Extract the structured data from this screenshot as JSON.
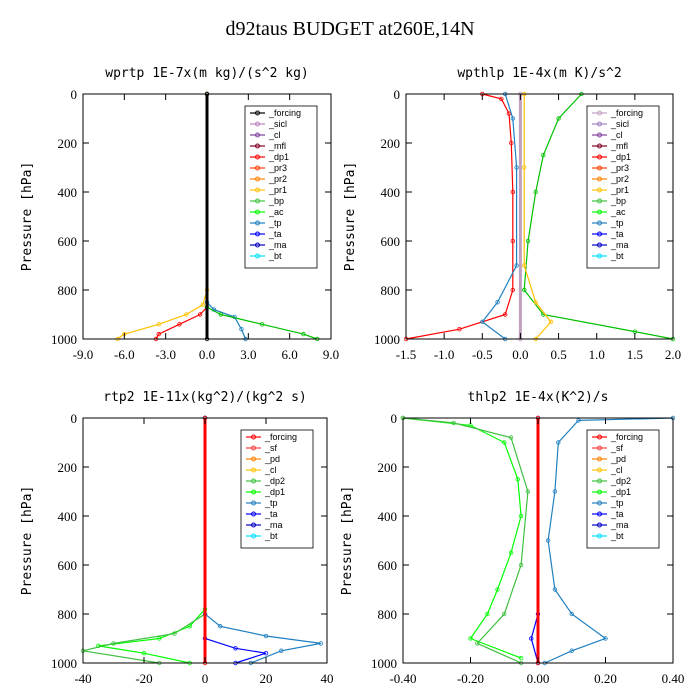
{
  "title": "d92taus  BUDGET at260E,14N",
  "chart_data": [
    {
      "type": "line",
      "title": "wprtp  1E-7x(m kg)/(s^2 kg)",
      "ylabel": "Pressure [hPa]",
      "xlim": [
        -9,
        9
      ],
      "ylim": [
        1000,
        0
      ],
      "xticks": [
        "-9.0",
        "-6.0",
        "-3.0",
        "0.0",
        "3.0",
        "6.0",
        "9.0"
      ],
      "yticks": [
        "0",
        "200",
        "400",
        "600",
        "800",
        "1000"
      ],
      "legend": [
        "_forcing",
        "_sicl",
        "_cl",
        "_mfl",
        "_dp1",
        "_pr3",
        "_pr2",
        "_pr1",
        "_bp",
        "_ac",
        "_tp",
        "_ta",
        "_ma",
        "_bt"
      ],
      "legend_colors": [
        "#000000",
        "#c080c0",
        "#8040a0",
        "#800020",
        "#ff0000",
        "#ff4000",
        "#ff8000",
        "#ffc000",
        "#40c040",
        "#00ff00",
        "#2080c0",
        "#0000ff",
        "#0000c0",
        "#00e0ff"
      ],
      "legend_position": "top-right",
      "series": [
        {
          "name": "_pr1",
          "color": "#ffc000",
          "points": [
            [
              0,
              0
            ],
            [
              0,
              800
            ],
            [
              -0.3,
              860
            ],
            [
              -1.5,
              900
            ],
            [
              -3.5,
              940
            ],
            [
              -6,
              980
            ],
            [
              -6.5,
              1000
            ]
          ]
        },
        {
          "name": "_dp1",
          "color": "#ff0000",
          "points": [
            [
              0,
              0
            ],
            [
              0,
              870
            ],
            [
              -0.5,
              900
            ],
            [
              -2,
              940
            ],
            [
              -3.5,
              980
            ],
            [
              -3.7,
              1000
            ]
          ]
        },
        {
          "name": "_tp",
          "color": "#2080c0",
          "points": [
            [
              0,
              0
            ],
            [
              0,
              850
            ],
            [
              0.5,
              880
            ],
            [
              2,
              910
            ],
            [
              2.5,
              960
            ],
            [
              2.8,
              1000
            ]
          ]
        },
        {
          "name": "_ac",
          "color": "#00c000",
          "points": [
            [
              0,
              0
            ],
            [
              0,
              870
            ],
            [
              1,
              900
            ],
            [
              4,
              940
            ],
            [
              7,
              980
            ],
            [
              8,
              1000
            ]
          ]
        },
        {
          "name": "_forcing",
          "color": "#000000",
          "points": [
            [
              0,
              0
            ],
            [
              0,
              1000
            ]
          ]
        }
      ]
    },
    {
      "type": "line",
      "title": "wpthlp  1E-4x(m K)/s^2",
      "ylabel": "Pressure [hPa]",
      "xlim": [
        -1.5,
        2.0
      ],
      "ylim": [
        1000,
        0
      ],
      "xticks": [
        "-1.5",
        "-1.0",
        "-0.5",
        "0.0",
        "0.5",
        "1.0",
        "1.5",
        "2.0"
      ],
      "yticks": [
        "0",
        "200",
        "400",
        "600",
        "800",
        "1000"
      ],
      "legend": [
        "_forcing",
        "_sicl",
        "_cl",
        "_mfl",
        "_dp1",
        "_pr3",
        "_pr2",
        "_pr1",
        "_bp",
        "_ac",
        "_tp",
        "_ta",
        "_ma",
        "_bt"
      ],
      "legend_colors": [
        "#c0a0c0",
        "#a080c0",
        "#8040a0",
        "#800020",
        "#ff0000",
        "#ff4000",
        "#ff8000",
        "#ffc000",
        "#40c040",
        "#00ff00",
        "#2080c0",
        "#0000ff",
        "#0000c0",
        "#00e0ff"
      ],
      "legend_position": "top-right",
      "series": [
        {
          "name": "_dp1",
          "color": "#ff0000",
          "points": [
            [
              -0.5,
              0
            ],
            [
              -0.25,
              20
            ],
            [
              -0.15,
              80
            ],
            [
              -0.12,
              200
            ],
            [
              -0.1,
              400
            ],
            [
              -0.1,
              600
            ],
            [
              -0.1,
              800
            ],
            [
              -0.2,
              900
            ],
            [
              -0.8,
              960
            ],
            [
              -1.5,
              1000
            ]
          ]
        },
        {
          "name": "_tp",
          "color": "#2080c0",
          "points": [
            [
              -0.2,
              0
            ],
            [
              -0.1,
              100
            ],
            [
              -0.05,
              300
            ],
            [
              -0.05,
              700
            ],
            [
              -0.3,
              850
            ],
            [
              -0.5,
              930
            ],
            [
              -0.2,
              1000
            ]
          ]
        },
        {
          "name": "_ac",
          "color": "#00c000",
          "points": [
            [
              0.8,
              0
            ],
            [
              0.5,
              100
            ],
            [
              0.3,
              250
            ],
            [
              0.2,
              400
            ],
            [
              0.1,
              600
            ],
            [
              0.05,
              800
            ],
            [
              0.3,
              900
            ],
            [
              1.5,
              970
            ],
            [
              2.0,
              1000
            ]
          ]
        },
        {
          "name": "_pr1",
          "color": "#ffc000",
          "points": [
            [
              0.05,
              0
            ],
            [
              0.05,
              300
            ],
            [
              0.05,
              700
            ],
            [
              0.2,
              850
            ],
            [
              0.4,
              930
            ],
            [
              0.2,
              1000
            ]
          ]
        },
        {
          "name": "_forcing",
          "color": "#c0a0c0",
          "points": [
            [
              0,
              0
            ],
            [
              0,
              1000
            ]
          ]
        }
      ]
    },
    {
      "type": "line",
      "title": "rtp2  1E-11x(kg^2)/(kg^2 s)",
      "ylabel": "Pressure [hPa]",
      "xlim": [
        -40,
        40
      ],
      "ylim": [
        1000,
        0
      ],
      "xticks": [
        "-40",
        "-20",
        "0",
        "20",
        "40"
      ],
      "yticks": [
        "0",
        "200",
        "400",
        "600",
        "800",
        "1000"
      ],
      "legend": [
        "_forcing",
        "_sf",
        "_pd",
        "_cl",
        "_dp2",
        "_dp1",
        "_tp",
        "_ta",
        "_ma",
        "_bt"
      ],
      "legend_colors": [
        "#ff0000",
        "#ff4040",
        "#ff8000",
        "#ffc000",
        "#40c040",
        "#00ff00",
        "#2080c0",
        "#0000ff",
        "#0000c0",
        "#00e0ff"
      ],
      "legend_position": "top-right",
      "series": [
        {
          "name": "_dp1",
          "color": "#00ff00",
          "points": [
            [
              0,
              0
            ],
            [
              0,
              780
            ],
            [
              -5,
              850
            ],
            [
              -15,
              900
            ],
            [
              -35,
              930
            ],
            [
              -20,
              960
            ],
            [
              -5,
              1000
            ]
          ]
        },
        {
          "name": "_dp2",
          "color": "#40c040",
          "points": [
            [
              0,
              0
            ],
            [
              0,
              800
            ],
            [
              -10,
              880
            ],
            [
              -30,
              920
            ],
            [
              -40,
              950
            ],
            [
              -15,
              1000
            ]
          ]
        },
        {
          "name": "_tp",
          "color": "#2080c0",
          "points": [
            [
              0,
              0
            ],
            [
              0,
              800
            ],
            [
              5,
              850
            ],
            [
              20,
              890
            ],
            [
              38,
              920
            ],
            [
              25,
              950
            ],
            [
              15,
              1000
            ]
          ]
        },
        {
          "name": "_ta",
          "color": "#0000ff",
          "points": [
            [
              0,
              0
            ],
            [
              0,
              900
            ],
            [
              10,
              940
            ],
            [
              20,
              960
            ],
            [
              10,
              1000
            ]
          ]
        },
        {
          "name": "_forcing",
          "color": "#ff0000",
          "points": [
            [
              0,
              0
            ],
            [
              0,
              1000
            ]
          ]
        }
      ]
    },
    {
      "type": "line",
      "title": "thlp2  1E-4x(K^2)/s",
      "ylabel": "Pressure [hPa]",
      "xlim": [
        -0.4,
        0.4
      ],
      "ylim": [
        1000,
        0
      ],
      "xticks": [
        "-0.40",
        "-0.20",
        "0.00",
        "0.20",
        "0.40"
      ],
      "yticks": [
        "0",
        "200",
        "400",
        "600",
        "800",
        "1000"
      ],
      "legend": [
        "_forcing",
        "_sf",
        "_pd",
        "_cl",
        "_dp2",
        "_dp1",
        "_tp",
        "_ta",
        "_ma",
        "_bt"
      ],
      "legend_colors": [
        "#ff0000",
        "#ff4040",
        "#ff8000",
        "#ffc000",
        "#40c040",
        "#00ff00",
        "#2080c0",
        "#0000ff",
        "#0000c0",
        "#00e0ff"
      ],
      "legend_position": "top-right",
      "series": [
        {
          "name": "_dp1",
          "color": "#00ff00",
          "points": [
            [
              -0.4,
              0
            ],
            [
              -0.2,
              30
            ],
            [
              -0.1,
              100
            ],
            [
              -0.06,
              250
            ],
            [
              -0.05,
              400
            ],
            [
              -0.08,
              550
            ],
            [
              -0.12,
              700
            ],
            [
              -0.15,
              800
            ],
            [
              -0.2,
              900
            ],
            [
              -0.05,
              980
            ]
          ]
        },
        {
          "name": "_dp2",
          "color": "#40c040",
          "points": [
            [
              -0.4,
              0
            ],
            [
              -0.25,
              20
            ],
            [
              -0.08,
              80
            ],
            [
              -0.03,
              300
            ],
            [
              -0.05,
              600
            ],
            [
              -0.1,
              800
            ],
            [
              -0.18,
              920
            ],
            [
              -0.05,
              1000
            ]
          ]
        },
        {
          "name": "_tp",
          "color": "#2080c0",
          "points": [
            [
              0.4,
              0
            ],
            [
              0.12,
              10
            ],
            [
              0.06,
              100
            ],
            [
              0.05,
              300
            ],
            [
              0.03,
              500
            ],
            [
              0.05,
              700
            ],
            [
              0.1,
              800
            ],
            [
              0.2,
              900
            ],
            [
              0.1,
              950
            ],
            [
              0.02,
              1000
            ]
          ]
        },
        {
          "name": "_ta",
          "color": "#0000ff",
          "points": [
            [
              0,
              0
            ],
            [
              0,
              800
            ],
            [
              -0.02,
              900
            ],
            [
              0,
              1000
            ]
          ]
        },
        {
          "name": "_forcing",
          "color": "#ff0000",
          "points": [
            [
              0,
              0
            ],
            [
              0,
              1000
            ]
          ]
        }
      ]
    }
  ]
}
